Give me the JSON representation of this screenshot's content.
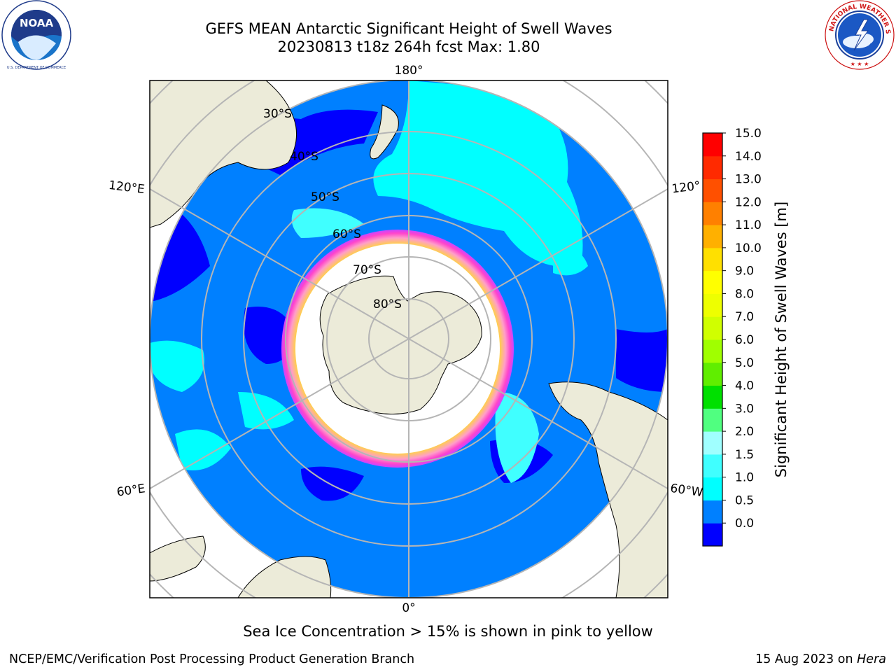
{
  "header": {
    "title_line1": "GEFS MEAN Antarctic Significant Height of Swell Waves",
    "title_line2": "20230813 t18z 264h fcst   Max: 1.80"
  },
  "logos": {
    "left": {
      "icon": "noaa-logo-icon",
      "text": "NOAA",
      "ring_text": "NATIONAL OCEANIC AND ATMOSPHERIC ADMINISTRATION · U.S. DEPARTMENT OF COMMERCE"
    },
    "right": {
      "icon": "nws-logo-icon",
      "ring_text": "NATIONAL WEATHER SERVICE"
    }
  },
  "map": {
    "projection": "south-polar-stereographic",
    "longitude_labels": [
      "180°",
      "120°E",
      "120°",
      "60°E",
      "60°W",
      "0°"
    ],
    "latitude_labels": [
      "30°S",
      "40°S",
      "50°S",
      "60°S",
      "70°S",
      "80°S"
    ],
    "colors": {
      "ocean_low": "#0000ff",
      "ocean_main": "#0080ff",
      "ocean_1_1p5": "#00ffff",
      "ice_free_interior": "#ffffff",
      "land": "#ecebd9",
      "ice_edge_pink": "#ff44cc",
      "ice_edge_yellow": "#ffd04a",
      "grid": "#b5b5b5"
    }
  },
  "colorbar": {
    "label": "Significant Height of Swell Waves [m]",
    "ticks": [
      "15.0",
      "14.0",
      "13.0",
      "12.0",
      "11.0",
      "10.0",
      "9.0",
      "8.0",
      "7.0",
      "6.0",
      "5.0",
      "4.0",
      "3.0",
      "2.0",
      "1.5",
      "1.0",
      "0.5",
      "0.0"
    ],
    "colors": [
      "#0000ff",
      "#0080ff",
      "#00ffff",
      "#40ffff",
      "#a0ffff",
      "#50ff80",
      "#00e000",
      "#60ee00",
      "#a0ff00",
      "#d0ff00",
      "#eeff00",
      "#ffff00",
      "#ffe000",
      "#ffb000",
      "#ff8000",
      "#ff5000",
      "#ff2a00",
      "#ff0000"
    ]
  },
  "note": "Sea Ice Concentration > 15% is shown in pink to yellow",
  "footer": {
    "left": "NCEP/EMC/Verification Post Processing Product Generation Branch",
    "right_date": "15 Aug 2023 on",
    "right_host": "Hera"
  }
}
